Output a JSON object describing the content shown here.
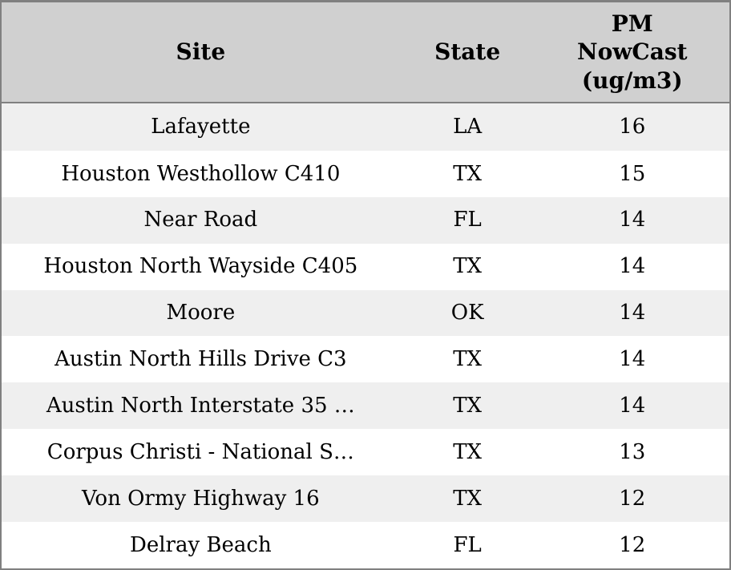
{
  "colors": {
    "border": "#808080",
    "header_bg": "#d0d0d0",
    "row_stripe": "#efefef",
    "row_bg": "#ffffff",
    "text": "#000000"
  },
  "table": {
    "columns": [
      "Site",
      "State",
      "PM NowCast (ug/m3)"
    ],
    "rows": [
      {
        "site": "Lafayette",
        "state": "LA",
        "value": "16"
      },
      {
        "site": "Houston Westhollow C410",
        "state": "TX",
        "value": "15"
      },
      {
        "site": "Near Road",
        "state": "FL",
        "value": "14"
      },
      {
        "site": "Houston North Wayside C405",
        "state": "TX",
        "value": "14"
      },
      {
        "site": "Moore",
        "state": "OK",
        "value": "14"
      },
      {
        "site": "Austin North Hills Drive C3",
        "state": "TX",
        "value": "14"
      },
      {
        "site": "Austin North Interstate 35 …",
        "state": "TX",
        "value": "14"
      },
      {
        "site": "Corpus Christi - National S…",
        "state": "TX",
        "value": "13"
      },
      {
        "site": "Von Ormy Highway 16",
        "state": "TX",
        "value": "12"
      },
      {
        "site": "Delray Beach",
        "state": "FL",
        "value": "12"
      }
    ]
  },
  "chart_data": {
    "type": "table",
    "title": "",
    "columns": [
      "Site",
      "State",
      "PM NowCast (ug/m3)"
    ],
    "rows": [
      [
        "Lafayette",
        "LA",
        16
      ],
      [
        "Houston Westhollow C410",
        "TX",
        15
      ],
      [
        "Near Road",
        "FL",
        14
      ],
      [
        "Houston North Wayside C405",
        "TX",
        14
      ],
      [
        "Moore",
        "OK",
        14
      ],
      [
        "Austin North Hills Drive C3",
        "TX",
        14
      ],
      [
        "Austin North Interstate 35 …",
        "TX",
        14
      ],
      [
        "Corpus Christi - National S…",
        "TX",
        13
      ],
      [
        "Von Ormy Highway 16",
        "TX",
        12
      ],
      [
        "Delray Beach",
        "FL",
        12
      ]
    ],
    "layout": {
      "header_background": "#d0d0d0",
      "striped_rows": true,
      "stripe_color": "#efefef",
      "value_column_units": "ug/m3"
    }
  }
}
